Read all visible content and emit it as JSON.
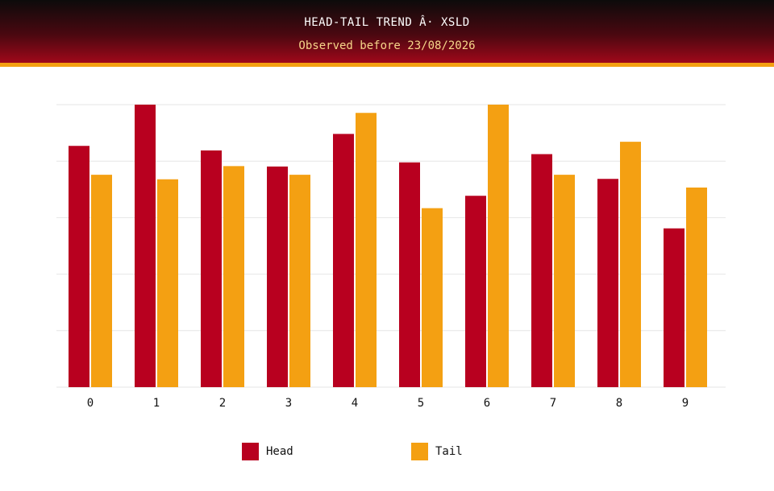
{
  "header": {
    "title": "HEAD-TAIL TREND Â· XSLD",
    "subtitle": "Observed before 23/08/2026"
  },
  "colors": {
    "head": "#b8001f",
    "tail": "#f4a012",
    "grid": "#e6e6e6"
  },
  "chart_data": {
    "type": "bar",
    "categories": [
      "0",
      "1",
      "2",
      "3",
      "4",
      "5",
      "6",
      "7",
      "8",
      "9"
    ],
    "series": [
      {
        "name": "Head",
        "values": [
          5.85,
          6.85,
          5.74,
          5.35,
          6.14,
          5.45,
          4.64,
          5.65,
          5.05,
          3.85
        ]
      },
      {
        "name": "Tail",
        "values": [
          5.15,
          5.04,
          5.36,
          5.15,
          6.65,
          4.34,
          6.85,
          5.15,
          5.95,
          4.84
        ]
      }
    ],
    "ylim": [
      0,
      6.85
    ],
    "grid": true,
    "legend": "bottom"
  }
}
